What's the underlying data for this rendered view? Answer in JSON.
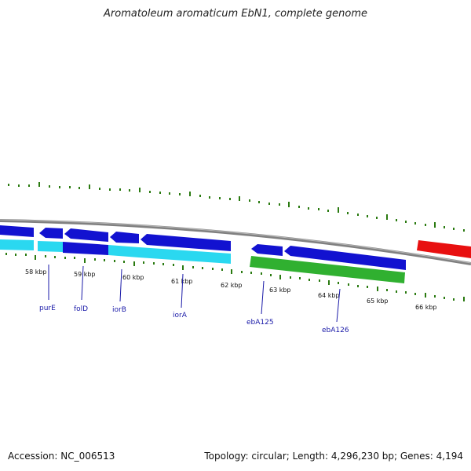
{
  "title": "Aromatoleum aromaticum EbN1, complete genome",
  "footer": {
    "accession": "Accession: NC_006513",
    "summary": "Topology: circular; Length: 4,296,230 bp; Genes: 4,194"
  },
  "ticks": [
    "58 kbp",
    "59 kbp",
    "60 kbp",
    "61 kbp",
    "62 kbp",
    "63 kbp",
    "64 kbp",
    "65 kbp",
    "66 kbp"
  ],
  "genes": [
    "purE",
    "folD",
    "iorB",
    "iorA",
    "ebA125",
    "ebA126"
  ],
  "colors": {
    "cds": "#1010d8",
    "cds_light": "#2ad8f0",
    "rrna_green": "#30b030",
    "trna_red": "#e81010",
    "gc_skew": "#2a7a10",
    "backbone": "#808080"
  }
}
